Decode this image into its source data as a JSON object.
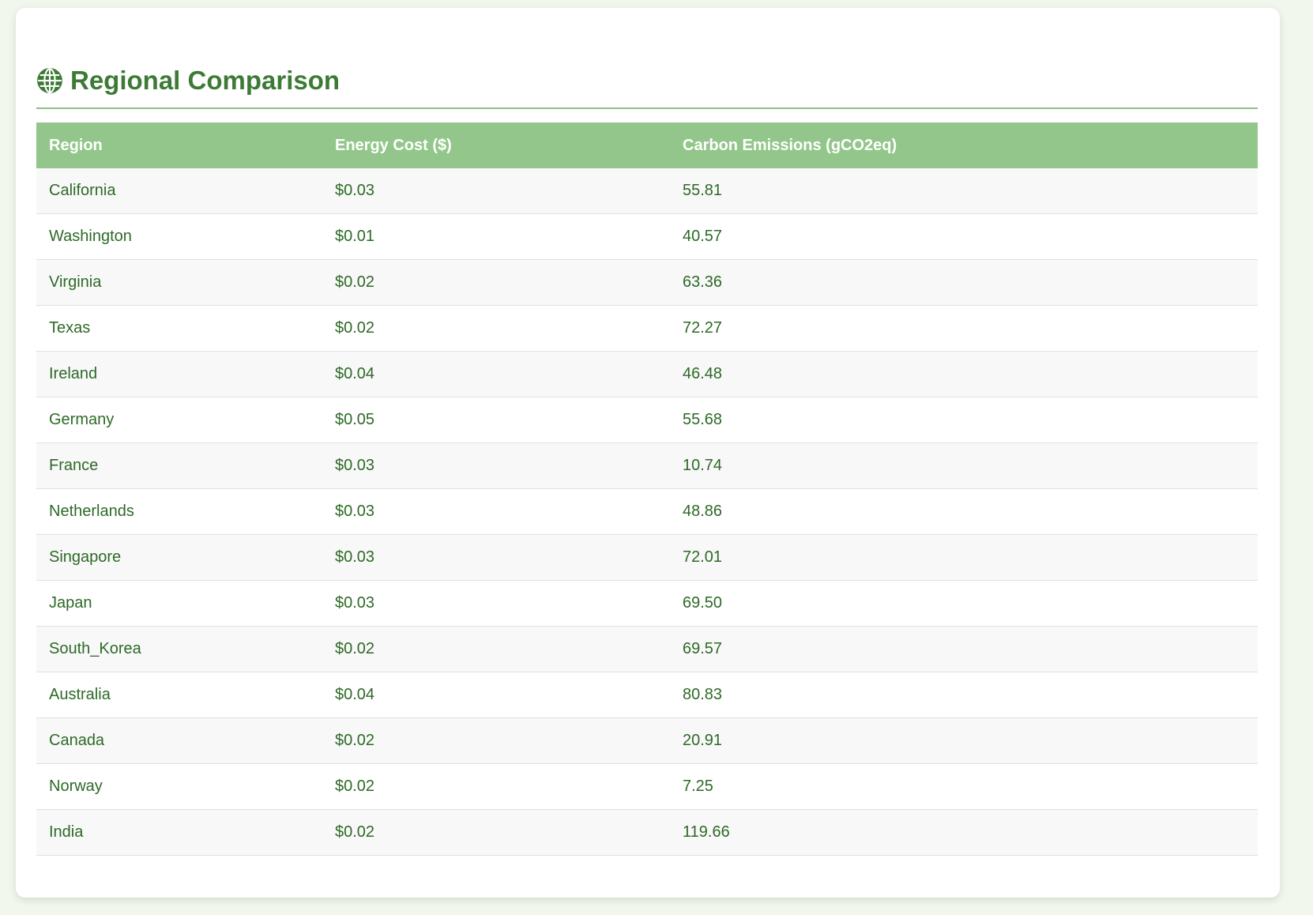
{
  "header": {
    "title": "Regional Comparison",
    "icon": "globe-icon"
  },
  "table": {
    "columns": [
      "Region",
      "Energy Cost ($)",
      "Carbon Emissions (gCO2eq)"
    ],
    "rows": [
      {
        "region": "California",
        "cost": "$0.03",
        "emissions": "55.81"
      },
      {
        "region": "Washington",
        "cost": "$0.01",
        "emissions": "40.57"
      },
      {
        "region": "Virginia",
        "cost": "$0.02",
        "emissions": "63.36"
      },
      {
        "region": "Texas",
        "cost": "$0.02",
        "emissions": "72.27"
      },
      {
        "region": "Ireland",
        "cost": "$0.04",
        "emissions": "46.48"
      },
      {
        "region": "Germany",
        "cost": "$0.05",
        "emissions": "55.68"
      },
      {
        "region": "France",
        "cost": "$0.03",
        "emissions": "10.74"
      },
      {
        "region": "Netherlands",
        "cost": "$0.03",
        "emissions": "48.86"
      },
      {
        "region": "Singapore",
        "cost": "$0.03",
        "emissions": "72.01"
      },
      {
        "region": "Japan",
        "cost": "$0.03",
        "emissions": "69.50"
      },
      {
        "region": "South_Korea",
        "cost": "$0.02",
        "emissions": "69.57"
      },
      {
        "region": "Australia",
        "cost": "$0.04",
        "emissions": "80.83"
      },
      {
        "region": "Canada",
        "cost": "$0.02",
        "emissions": "20.91"
      },
      {
        "region": "Norway",
        "cost": "$0.02",
        "emissions": "7.25"
      },
      {
        "region": "India",
        "cost": "$0.02",
        "emissions": "119.66"
      }
    ]
  },
  "colors": {
    "accent": "#3d7a35",
    "header_bg": "#93c68a",
    "page_bg": "#f1f7ec",
    "cell_text": "#2d6a26"
  }
}
